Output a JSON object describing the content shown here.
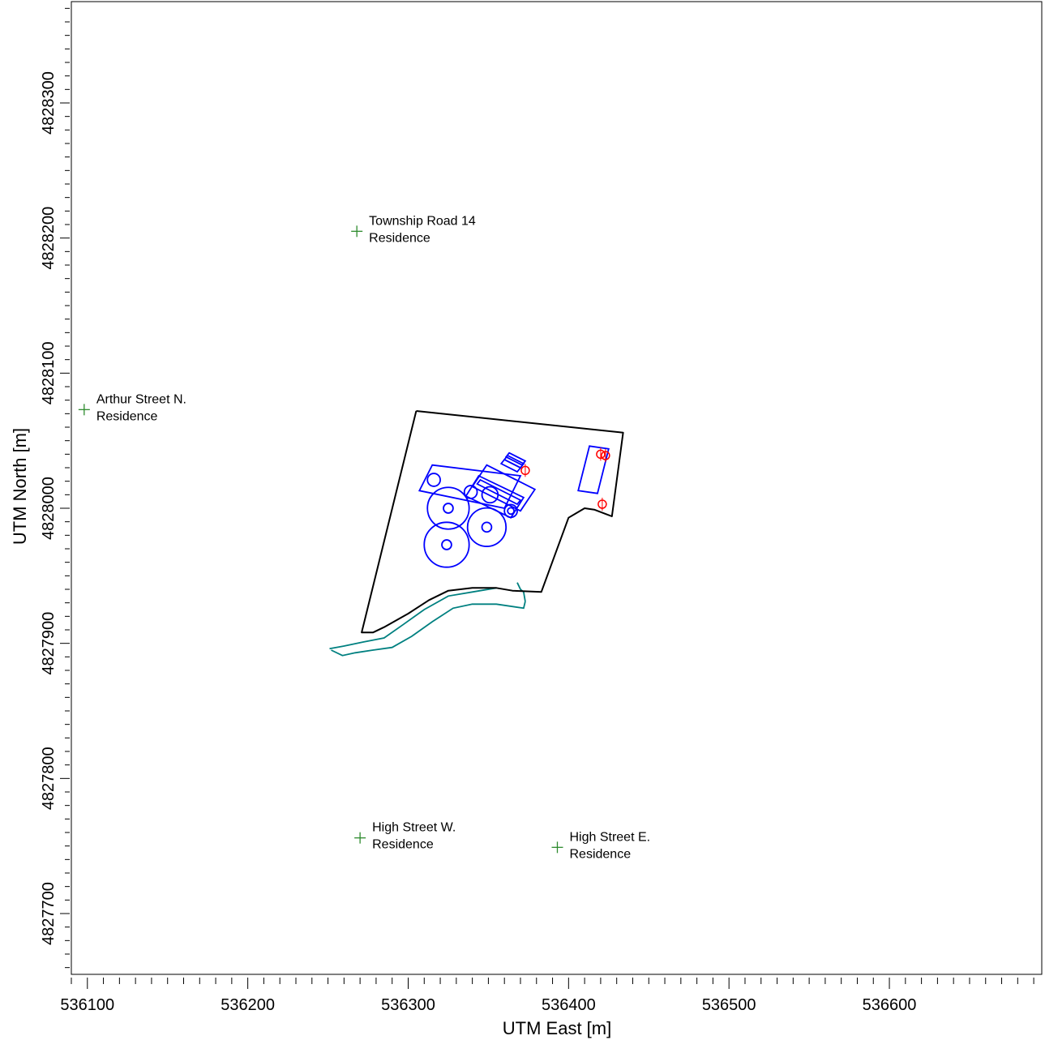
{
  "axes": {
    "xlabel": "UTM East [m]",
    "ylabel": "UTM North [m]",
    "xlim": [
      536090,
      536695
    ],
    "ylim": [
      4827655,
      4828375
    ],
    "x_ticks": [
      536100,
      536200,
      536300,
      536400,
      536500,
      536600
    ],
    "x_tick_labels": [
      "536100",
      "536200",
      "536300",
      "536400",
      "536500",
      "536600"
    ],
    "y_ticks": [
      4827700,
      4827800,
      4827900,
      4828000,
      4828100,
      4828200,
      4828300
    ],
    "y_tick_labels": [
      "4827700",
      "4827800",
      "4827900",
      "4828000",
      "4828100",
      "4828200",
      "4828300"
    ],
    "minor_tick_step": 10
  },
  "colors": {
    "receptor": "#2e8b2e",
    "property_line": "#000000",
    "buildings": "#0000ff",
    "sources": "#ff0000",
    "creek": "#008080"
  },
  "receptors": [
    {
      "line1": "Township Road 14",
      "line2": "Residence",
      "x": 536268,
      "y": 4828205
    },
    {
      "line1": "Arthur Street N.",
      "line2": "Residence",
      "x": 536098,
      "y": 4828073
    },
    {
      "line1": "High Street W.",
      "line2": "Residence",
      "x": 536270,
      "y": 4827756
    },
    {
      "line1": "High Street E.",
      "line2": "Residence",
      "x": 536393,
      "y": 4827749
    }
  ],
  "property_boundary": [
    [
      536305,
      4828072
    ],
    [
      536434,
      4828056
    ],
    [
      536427,
      4827994
    ],
    [
      536416,
      4827999
    ],
    [
      536410,
      4828000
    ],
    [
      536400,
      4827993
    ],
    [
      536383,
      4827938
    ],
    [
      536365,
      4827939
    ],
    [
      536355,
      4827941
    ],
    [
      536340,
      4827941
    ],
    [
      536325,
      4827939
    ],
    [
      536313,
      4827932
    ],
    [
      536300,
      4827922
    ],
    [
      536285,
      4827912
    ],
    [
      536278,
      4827908
    ],
    [
      536271,
      4827908
    ],
    [
      536305,
      4828072
    ]
  ],
  "creek_north": [
    [
      536355,
      4827941
    ],
    [
      536340,
      4827938
    ],
    [
      536325,
      4827935
    ],
    [
      536310,
      4827925
    ],
    [
      536297,
      4827914
    ],
    [
      536285,
      4827904
    ],
    [
      536272,
      4827901
    ],
    [
      536260,
      4827898
    ],
    [
      536251,
      4827896
    ]
  ],
  "creek_south": [
    [
      536373,
      4827931
    ],
    [
      536372,
      4827926
    ],
    [
      536355,
      4827929
    ],
    [
      536340,
      4827929
    ],
    [
      536328,
      4827926
    ],
    [
      536315,
      4827916
    ],
    [
      536302,
      4827905
    ],
    [
      536290,
      4827897
    ],
    [
      536278,
      4827895
    ],
    [
      536267,
      4827893
    ],
    [
      536259,
      4827891
    ],
    [
      536252,
      4827895
    ]
  ],
  "creek_east_edge": [
    [
      536368,
      4827945
    ],
    [
      536370,
      4827940
    ],
    [
      536372,
      4827938
    ],
    [
      536373,
      4827931
    ]
  ],
  "buildings": [
    {
      "shape": "polygon",
      "points": [
        [
          536344,
          4828024
        ],
        [
          536372,
          4828008
        ],
        [
          536364,
          4827993
        ],
        [
          536336,
          4828009
        ]
      ]
    },
    {
      "shape": "polygon",
      "points": [
        [
          536345,
          4828021
        ],
        [
          536370,
          4828006
        ],
        [
          536368,
          4828003
        ],
        [
          536343,
          4828018
        ]
      ]
    },
    {
      "shape": "polygon",
      "points": [
        [
          536360,
          4828036
        ],
        [
          536370,
          4828030
        ],
        [
          536368,
          4828027
        ],
        [
          536358,
          4828033
        ]
      ]
    },
    {
      "shape": "polygon",
      "points": [
        [
          536362,
          4828039
        ],
        [
          536372,
          4828033
        ],
        [
          536370,
          4828030
        ],
        [
          536360,
          4828036
        ]
      ]
    },
    {
      "shape": "polygon",
      "points": [
        [
          536363,
          4828041
        ],
        [
          536373,
          4828035
        ],
        [
          536371,
          4828032
        ],
        [
          536361,
          4828038
        ]
      ]
    },
    {
      "shape": "polygon",
      "points": [
        [
          536349,
          4828032
        ],
        [
          536379,
          4828014
        ],
        [
          536370,
          4827998
        ],
        [
          536340,
          4828016
        ]
      ]
    },
    {
      "shape": "polygon",
      "points": [
        [
          536315,
          4828032
        ],
        [
          536370,
          4828024
        ],
        [
          536360,
          4828000
        ],
        [
          536307,
          4828013
        ]
      ]
    },
    {
      "shape": "polygon",
      "points": [
        [
          536413,
          4828046
        ],
        [
          536425,
          4828044
        ],
        [
          536418,
          4828011
        ],
        [
          536406,
          4828013
        ]
      ]
    },
    {
      "shape": "circle",
      "cx": 536325,
      "cy": 4828000,
      "r": 13
    },
    {
      "shape": "circle",
      "cx": 536325,
      "cy": 4828000,
      "r": 3
    },
    {
      "shape": "circle",
      "cx": 536324,
      "cy": 4827973,
      "r": 14
    },
    {
      "shape": "circle",
      "cx": 536324,
      "cy": 4827973,
      "r": 3
    },
    {
      "shape": "circle",
      "cx": 536349,
      "cy": 4827986,
      "r": 12
    },
    {
      "shape": "circle",
      "cx": 536349,
      "cy": 4827986,
      "r": 3
    },
    {
      "shape": "circle",
      "cx": 536364,
      "cy": 4827998,
      "r": 4
    },
    {
      "shape": "circle",
      "cx": 536364,
      "cy": 4827998,
      "r": 2
    },
    {
      "shape": "circle",
      "cx": 536339,
      "cy": 4828012,
      "r": 4
    },
    {
      "shape": "circle",
      "cx": 536351,
      "cy": 4828010,
      "r": 5
    },
    {
      "shape": "circle",
      "cx": 536316,
      "cy": 4828021,
      "r": 4
    }
  ],
  "sources": [
    {
      "x": 536373,
      "y": 4828028
    },
    {
      "x": 536420,
      "y": 4828040
    },
    {
      "x": 536423,
      "y": 4828039
    },
    {
      "x": 536421,
      "y": 4828003
    }
  ]
}
